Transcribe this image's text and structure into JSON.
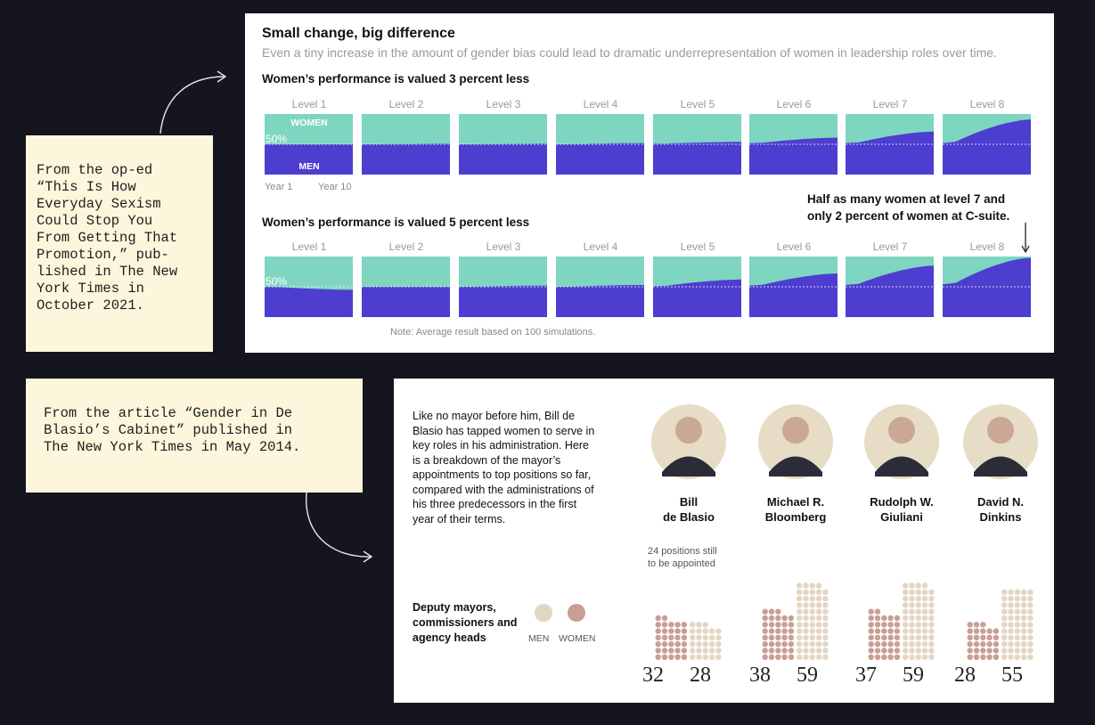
{
  "captions": {
    "top": "From the op-ed\n“This Is How\nEveryday Sexism\nCould Stop You\nFrom Getting That\nPromotion,” pub-\nlished in The New\nYork Times in\nOctober 2021.",
    "bottom": "From the article “Gender in De\nBlasio’s Cabinet” published in\nThe New York Times in May 2014."
  },
  "colors": {
    "women": "#7fd6c0",
    "men": "#4d3ed0",
    "women_dot": "#c99e93",
    "men_dot": "#e3d6c3",
    "caption_bg": "#fdf6dc",
    "page_bg": "#15151f"
  },
  "chart_data": [
    {
      "type": "area",
      "title": "Small change, big difference",
      "subtitle": "Even a tiny increase in the amount of gender bias could lead to dramatic underrepresentation of women in leadership roles over time.",
      "note": "Note: Average result based on 100 simulations.",
      "reference_label": "50%",
      "band_labels": {
        "women": "WOMEN",
        "men": "MEN"
      },
      "x_labels": {
        "start": "Year 1",
        "end": "Year 10"
      },
      "ylim": [
        0,
        100
      ],
      "annotation": "Half as many women at level 7 and\nonly 2 percent of women at C-suite.",
      "panels": [
        {
          "title": "Women’s performance is valued 3 percent less",
          "levels": [
            {
              "label": "Level 1",
              "men_share_start": 50,
              "men_share_end": 50
            },
            {
              "label": "Level 2",
              "men_share_start": 50,
              "men_share_end": 51
            },
            {
              "label": "Level 3",
              "men_share_start": 50,
              "men_share_end": 51
            },
            {
              "label": "Level 4",
              "men_share_start": 50,
              "men_share_end": 52
            },
            {
              "label": "Level 5",
              "men_share_start": 51,
              "men_share_end": 54
            },
            {
              "label": "Level 6",
              "men_share_start": 52,
              "men_share_end": 61
            },
            {
              "label": "Level 7",
              "men_share_start": 52,
              "men_share_end": 71
            },
            {
              "label": "Level 8",
              "men_share_start": 52,
              "men_share_end": 91
            }
          ]
        },
        {
          "title": "Women’s performance is valued 5 percent less",
          "levels": [
            {
              "label": "Level 1",
              "men_share_start": 50,
              "men_share_end": 45
            },
            {
              "label": "Level 2",
              "men_share_start": 50,
              "men_share_end": 50
            },
            {
              "label": "Level 3",
              "men_share_start": 50,
              "men_share_end": 52
            },
            {
              "label": "Level 4",
              "men_share_start": 50,
              "men_share_end": 53
            },
            {
              "label": "Level 5",
              "men_share_start": 51,
              "men_share_end": 62
            },
            {
              "label": "Level 6",
              "men_share_start": 52,
              "men_share_end": 72
            },
            {
              "label": "Level 7",
              "men_share_start": 53,
              "men_share_end": 85
            },
            {
              "label": "Level 8",
              "men_share_start": 54,
              "men_share_end": 98
            }
          ]
        }
      ]
    },
    {
      "type": "bar",
      "intro": "Like no mayor before him, Bill de Blasio has tapped women to serve in key roles in his administration. Here is a breakdown of the mayor’s appointments to top positions so far, compared with the administrations of his three predecessors in the first year of their terms.",
      "legend": {
        "title": "Deputy mayors, commissioners and agency heads",
        "men": "MEN",
        "women": "WOMEN"
      },
      "series": [
        {
          "name": "Bill\nde Blasio",
          "women": 32,
          "men": 28,
          "note": "24 positions still to be appointed"
        },
        {
          "name": "Michael R.\nBloomberg",
          "women": 38,
          "men": 59
        },
        {
          "name": "Rudolph W.\nGiuliani",
          "women": 37,
          "men": 59
        },
        {
          "name": "David N.\nDinkins",
          "women": 28,
          "men": 55
        }
      ]
    }
  ]
}
